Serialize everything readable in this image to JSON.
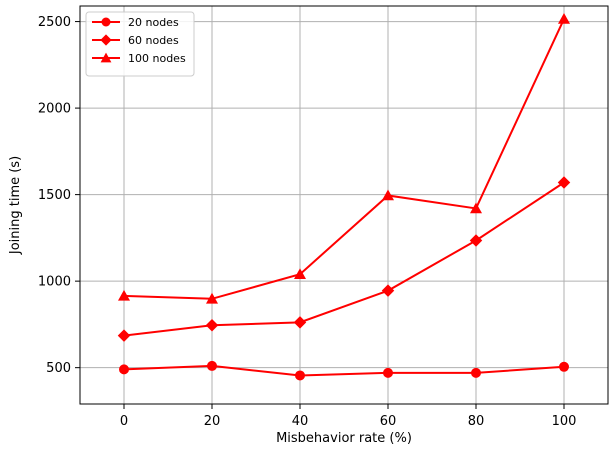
{
  "chart_data": {
    "type": "line",
    "title": "",
    "xlabel": "Misbehavior rate (%)",
    "ylabel": "Joining time (s)",
    "x": [
      0,
      20,
      40,
      60,
      80,
      100
    ],
    "xticks": [
      "0",
      "20",
      "40",
      "60",
      "80",
      "100"
    ],
    "yticks": [
      "500",
      "1000",
      "1500",
      "2000",
      "2500"
    ],
    "xlim": [
      -10,
      110
    ],
    "ylim": [
      290,
      2590
    ],
    "grid": true,
    "legend_position": "top-left",
    "series": [
      {
        "name": "20 nodes",
        "marker": "circle",
        "color": "#ff0000",
        "values": [
          490,
          510,
          455,
          470,
          470,
          505
        ]
      },
      {
        "name": "60 nodes",
        "marker": "diamond",
        "color": "#ff0000",
        "values": [
          685,
          745,
          762,
          945,
          1235,
          1570
        ]
      },
      {
        "name": "100 nodes",
        "marker": "triangle",
        "color": "#ff0000",
        "values": [
          915,
          898,
          1040,
          1495,
          1420,
          2515
        ]
      }
    ]
  }
}
